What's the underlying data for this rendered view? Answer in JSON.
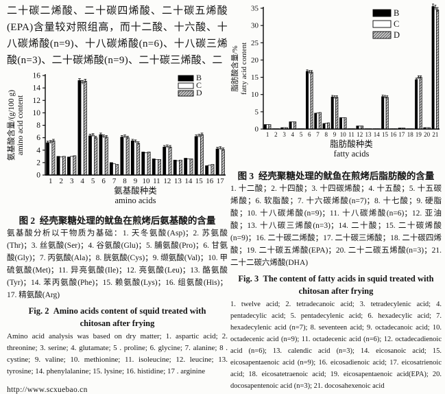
{
  "left_column": {
    "intro_text": "二十碳二烯酸、二十碳四烯酸、二十碳五烯酸(EPA)含量较对照组高，而十二酸、十六酸、十八碳烯酸(n=9)、十八碳烯酸(n=6)、十八碳三烯酸(n=3)、二十碳烯酸(n=9)、二十碳三烯酸、二",
    "fig2": {
      "title_cn": "图 2  经壳聚糖处理的鱿鱼在煎烤后氨基酸的含量",
      "note_cn": "氨基酸分析以干物质为基础：1. 天冬氨酸(Asp)；2. 苏氨酸(Thr)；3. 丝氨酸(Ser)；4. 谷氨酸(Glu)；5. 脯氨酸(Pro)；6. 甘氨酸(Gly)；7. 丙氨酸(Ala)；8. 胱氨酸(Cys)；9. 缬氨酸(Val)；10. 甲硫氨酸(Met)；11. 异亮氨酸(Ile)；12. 亮氨酸(Leu)；13. 酪氨酸(Tyr)；14. 苯丙氨酸(Phe)；15. 赖氨酸(Lys)；16. 组氨酸(His)；17. 精氨酸(Arg)",
      "title_en_line1": "Fig. 2  Amino acids content of squid treated with",
      "title_en_line2": "chitosan after frying",
      "note_en": "Amino acid analysis was based on dry matter; 1. aspartic acid; 2. threonine; 3. serine; 4. glutamate; 5 . proline; 6. glycine; 7. alanine; 8 . cystine; 9. valine; 10. methionine; 11. isoleucine; 12. leucine; 13. tyrosine; 14. phenylalanine; 15. lysine; 16. histidine; 17 . arginine"
    },
    "footer_url": "http://www.scxuebao.cn"
  },
  "right_column": {
    "fig3": {
      "title_cn": "图 3  经壳聚糖处理的鱿鱼在煎烤后脂肪酸的含量",
      "note_cn": "1. 十二酸；2. 十四酸；3. 十四碳烯酸；4. 十五酸；5. 十五碳烯酸；6. 软脂酸；7. 十六碳烯酸(n=7)；8. 十七酸；9. 硬脂酸；10. 十八碳烯酸(n=9)；11. 十八碳烯酸(n=6)；12. 亚油酸；13. 十八碳三烯酸(n=3)；14. 二十酸；15. 二十碳烯酸(n=9)；16. 二十碳二烯酸；17. 二十碳三烯酸；18. 二十碳四烯酸；19. 二十碳五烯酸(EPA)；20. 二十二碳五烯酸(n=3)；21. 二十二碳六烯酸(DHA)",
      "title_en_line1": "Fig. 3  The content of fatty acids in squid treated with",
      "title_en_line2": "chitosan after frying",
      "note_en": "1. twelve acid; 2. tetradecanoic acid; 3. tetradecylenic acid; 4. pentadecylic acid; 5. pentadecylenic acid; 6. hexadecylic acid; 7. hexadecylenic acid (n=7); 8. seventeen acid; 9. octadecanoic acid; 10. octadecenic acid (n=9); 11. octadecenic acid (n=6); 12. octadecadienoic acid (n=6); 13. calendic acid (n=3); 14. eicosanoic acid; 15. eicosapentaenoic acid (n=9); 16. eicosadienoic acid; 17. eicosatrienoic acid; 18. eicosatetraenoic acid; 19. eicosapentaenoic acid(EPA); 20. docosapentenoic acid (n=3); 21. docosahexenoic acid"
    }
  },
  "colors": {
    "series_b": "#000000",
    "series_c": "#ffffff",
    "series_d_background": "#c9c9c9",
    "series_d_hatch": "#4a4a4a",
    "axis": "#000000"
  },
  "chart_data": [
    {
      "id": "fig2",
      "type": "bar",
      "title": "",
      "categories": [
        "1",
        "2",
        "3",
        "4",
        "5",
        "6",
        "7",
        "8",
        "9",
        "10",
        "11",
        "12",
        "13",
        "14",
        "15",
        "16",
        "17"
      ],
      "series": [
        {
          "name": "B",
          "fill": "#000000",
          "values": [
            5.2,
            3.0,
            2.9,
            15.2,
            6.3,
            6.5,
            2.0,
            6.1,
            5.5,
            3.7,
            2.6,
            4.5,
            2.4,
            2.7,
            6.2,
            1.5,
            4.2
          ]
        },
        {
          "name": "C",
          "fill": "#ffffff",
          "values": [
            5.3,
            2.9,
            3.0,
            14.9,
            6.4,
            6.2,
            1.8,
            6.2,
            5.4,
            3.6,
            2.5,
            4.6,
            2.3,
            2.6,
            6.3,
            1.6,
            4.3
          ]
        },
        {
          "name": "D",
          "fill": "hatch",
          "values": [
            5.5,
            3.0,
            3.1,
            15.1,
            6.0,
            6.1,
            1.7,
            6.0,
            5.1,
            3.7,
            2.5,
            4.5,
            2.4,
            2.6,
            6.5,
            1.7,
            4.1
          ]
        }
      ],
      "ylabel_cn": "氨基酸含量/(g/100 g)",
      "ylabel_en": "amino acid content",
      "xlabel_cn": "氨基酸种类",
      "xlabel_en": "amino acids",
      "ylim": [
        0,
        16
      ],
      "ytick_step": 2,
      "grid": false,
      "legend": [
        "B",
        "C",
        "D"
      ],
      "legend_position": "top-right",
      "error_bars": true
    },
    {
      "id": "fig3",
      "type": "bar",
      "title": "",
      "categories": [
        "1",
        "2",
        "3",
        "4",
        "5",
        "6",
        "7",
        "8",
        "9",
        "10",
        "11",
        "12",
        "13",
        "14",
        "15",
        "16",
        "17",
        "18",
        "19",
        "20",
        "21"
      ],
      "series": [
        {
          "name": "B",
          "fill": "#000000",
          "values": [
            1.3,
            0.1,
            0.4,
            2.1,
            0.1,
            16.7,
            4.6,
            1.6,
            9.3,
            3.3,
            0.1,
            0.9,
            0.1,
            0.1,
            9.4,
            0.1,
            0.3,
            0.1,
            14.3,
            0.4,
            35.5
          ]
        },
        {
          "name": "C",
          "fill": "#ffffff",
          "values": [
            1.3,
            0.1,
            0.4,
            2.1,
            0.1,
            16.5,
            4.7,
            1.7,
            9.2,
            3.3,
            0.1,
            0.9,
            0.1,
            0.1,
            9.3,
            0.1,
            0.3,
            0.1,
            15.0,
            0.4,
            35.2
          ]
        },
        {
          "name": "D",
          "fill": "hatch",
          "values": [
            1.3,
            0.1,
            0.4,
            2.1,
            0.1,
            16.5,
            4.8,
            1.8,
            9.2,
            3.3,
            0.1,
            0.9,
            0.1,
            0.1,
            9.2,
            0.1,
            0.3,
            0.1,
            15.0,
            0.4,
            34.5
          ]
        }
      ],
      "ylabel_cn": "脂肪酸含量/%",
      "ylabel_en": "fatty acid content",
      "xlabel_cn": "脂肪酸种类",
      "xlabel_en": "fatty acids",
      "ylim": [
        0,
        35
      ],
      "ytick_step": 5,
      "grid": false,
      "legend": [
        "B",
        "C",
        "D"
      ],
      "legend_position": "top-right",
      "error_bars": true
    }
  ]
}
